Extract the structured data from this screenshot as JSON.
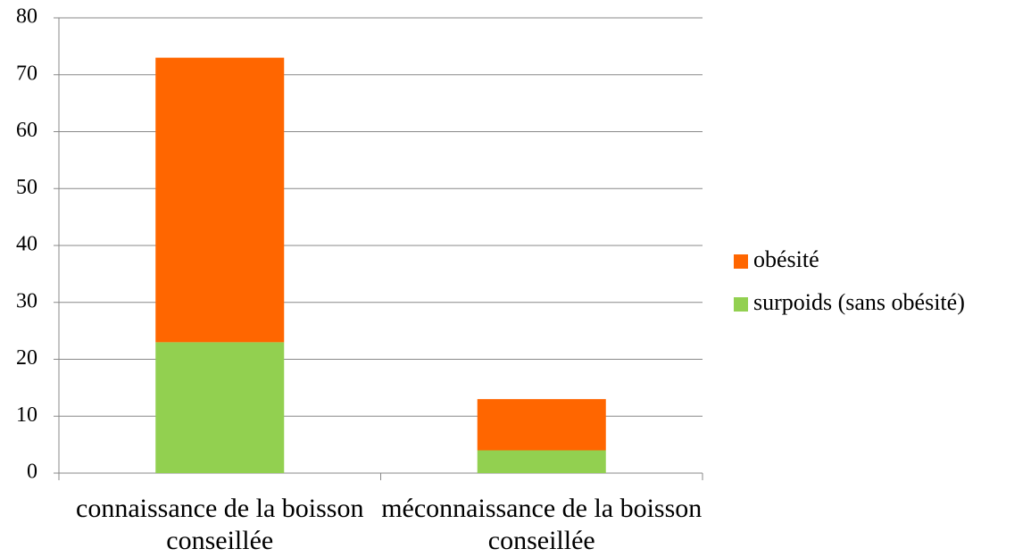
{
  "chart_data": {
    "type": "bar",
    "stacked": true,
    "categories": [
      "connaissance de la boisson conseillée",
      "méconnaissance de la boisson conseillée"
    ],
    "series": [
      {
        "name": "surpoids (sans obésité)",
        "color": "#92d050",
        "values": [
          23,
          4
        ]
      },
      {
        "name": "obésité",
        "color": "#ff6600",
        "values": [
          50,
          9
        ]
      }
    ],
    "ylim": [
      0,
      80
    ],
    "yticks": [
      0,
      10,
      20,
      30,
      40,
      50,
      60,
      70,
      80
    ],
    "grid": true,
    "legend": "right"
  }
}
